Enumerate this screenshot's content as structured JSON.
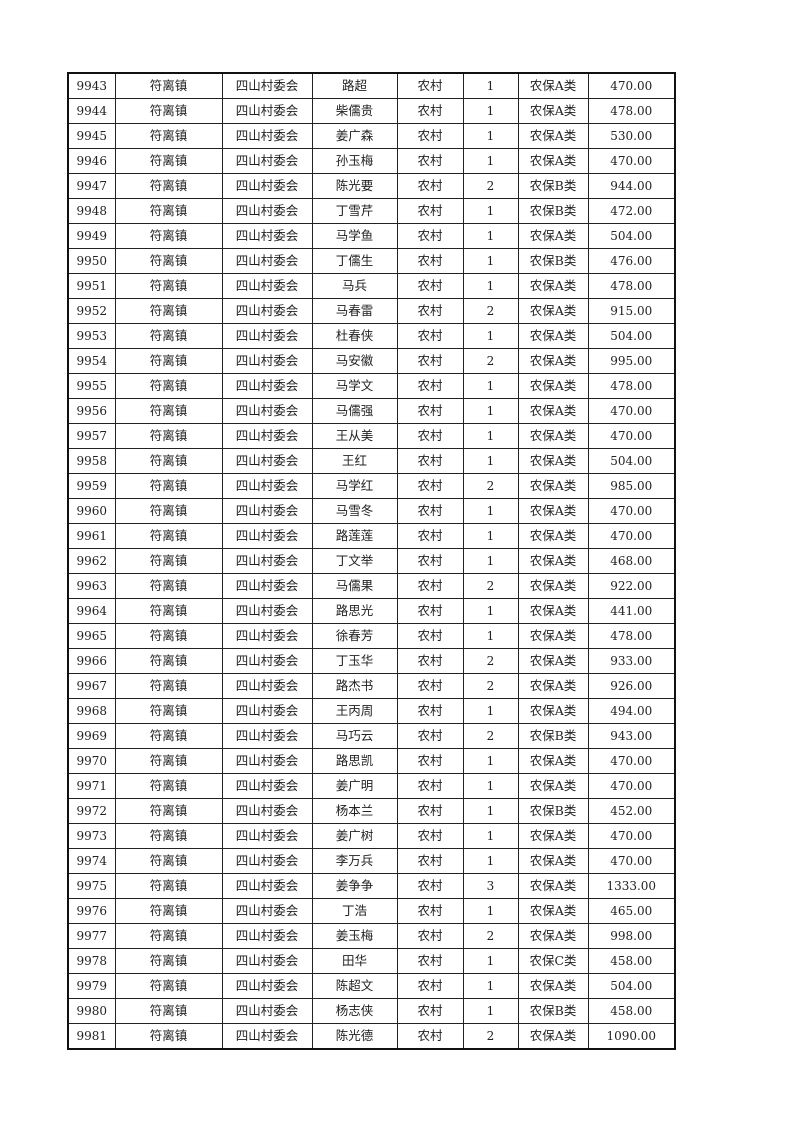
{
  "table": {
    "rows": [
      [
        "9943",
        "符离镇",
        "四山村委会",
        "路超",
        "农村",
        "1",
        "农保A类",
        "470.00"
      ],
      [
        "9944",
        "符离镇",
        "四山村委会",
        "柴儒贵",
        "农村",
        "1",
        "农保A类",
        "478.00"
      ],
      [
        "9945",
        "符离镇",
        "四山村委会",
        "姜广森",
        "农村",
        "1",
        "农保A类",
        "530.00"
      ],
      [
        "9946",
        "符离镇",
        "四山村委会",
        "孙玉梅",
        "农村",
        "1",
        "农保A类",
        "470.00"
      ],
      [
        "9947",
        "符离镇",
        "四山村委会",
        "陈光要",
        "农村",
        "2",
        "农保B类",
        "944.00"
      ],
      [
        "9948",
        "符离镇",
        "四山村委会",
        "丁雪芹",
        "农村",
        "1",
        "农保B类",
        "472.00"
      ],
      [
        "9949",
        "符离镇",
        "四山村委会",
        "马学鱼",
        "农村",
        "1",
        "农保A类",
        "504.00"
      ],
      [
        "9950",
        "符离镇",
        "四山村委会",
        "丁儒生",
        "农村",
        "1",
        "农保B类",
        "476.00"
      ],
      [
        "9951",
        "符离镇",
        "四山村委会",
        "马兵",
        "农村",
        "1",
        "农保A类",
        "478.00"
      ],
      [
        "9952",
        "符离镇",
        "四山村委会",
        "马春雷",
        "农村",
        "2",
        "农保A类",
        "915.00"
      ],
      [
        "9953",
        "符离镇",
        "四山村委会",
        "杜春侠",
        "农村",
        "1",
        "农保A类",
        "504.00"
      ],
      [
        "9954",
        "符离镇",
        "四山村委会",
        "马安徽",
        "农村",
        "2",
        "农保A类",
        "995.00"
      ],
      [
        "9955",
        "符离镇",
        "四山村委会",
        "马学文",
        "农村",
        "1",
        "农保A类",
        "478.00"
      ],
      [
        "9956",
        "符离镇",
        "四山村委会",
        "马儒强",
        "农村",
        "1",
        "农保A类",
        "470.00"
      ],
      [
        "9957",
        "符离镇",
        "四山村委会",
        "王从美",
        "农村",
        "1",
        "农保A类",
        "470.00"
      ],
      [
        "9958",
        "符离镇",
        "四山村委会",
        "王红",
        "农村",
        "1",
        "农保A类",
        "504.00"
      ],
      [
        "9959",
        "符离镇",
        "四山村委会",
        "马学红",
        "农村",
        "2",
        "农保A类",
        "985.00"
      ],
      [
        "9960",
        "符离镇",
        "四山村委会",
        "马雪冬",
        "农村",
        "1",
        "农保A类",
        "470.00"
      ],
      [
        "9961",
        "符离镇",
        "四山村委会",
        "路莲莲",
        "农村",
        "1",
        "农保A类",
        "470.00"
      ],
      [
        "9962",
        "符离镇",
        "四山村委会",
        "丁文举",
        "农村",
        "1",
        "农保A类",
        "468.00"
      ],
      [
        "9963",
        "符离镇",
        "四山村委会",
        "马儒果",
        "农村",
        "2",
        "农保A类",
        "922.00"
      ],
      [
        "9964",
        "符离镇",
        "四山村委会",
        "路思光",
        "农村",
        "1",
        "农保A类",
        "441.00"
      ],
      [
        "9965",
        "符离镇",
        "四山村委会",
        "徐春芳",
        "农村",
        "1",
        "农保A类",
        "478.00"
      ],
      [
        "9966",
        "符离镇",
        "四山村委会",
        "丁玉华",
        "农村",
        "2",
        "农保A类",
        "933.00"
      ],
      [
        "9967",
        "符离镇",
        "四山村委会",
        "路杰书",
        "农村",
        "2",
        "农保A类",
        "926.00"
      ],
      [
        "9968",
        "符离镇",
        "四山村委会",
        "王丙周",
        "农村",
        "1",
        "农保A类",
        "494.00"
      ],
      [
        "9969",
        "符离镇",
        "四山村委会",
        "马巧云",
        "农村",
        "2",
        "农保B类",
        "943.00"
      ],
      [
        "9970",
        "符离镇",
        "四山村委会",
        "路思凯",
        "农村",
        "1",
        "农保A类",
        "470.00"
      ],
      [
        "9971",
        "符离镇",
        "四山村委会",
        "姜广明",
        "农村",
        "1",
        "农保A类",
        "470.00"
      ],
      [
        "9972",
        "符离镇",
        "四山村委会",
        "杨本兰",
        "农村",
        "1",
        "农保B类",
        "452.00"
      ],
      [
        "9973",
        "符离镇",
        "四山村委会",
        "姜广树",
        "农村",
        "1",
        "农保A类",
        "470.00"
      ],
      [
        "9974",
        "符离镇",
        "四山村委会",
        "李万兵",
        "农村",
        "1",
        "农保A类",
        "470.00"
      ],
      [
        "9975",
        "符离镇",
        "四山村委会",
        "姜争争",
        "农村",
        "3",
        "农保A类",
        "1333.00"
      ],
      [
        "9976",
        "符离镇",
        "四山村委会",
        "丁浩",
        "农村",
        "1",
        "农保A类",
        "465.00"
      ],
      [
        "9977",
        "符离镇",
        "四山村委会",
        "姜玉梅",
        "农村",
        "2",
        "农保A类",
        "998.00"
      ],
      [
        "9978",
        "符离镇",
        "四山村委会",
        "田华",
        "农村",
        "1",
        "农保C类",
        "458.00"
      ],
      [
        "9979",
        "符离镇",
        "四山村委会",
        "陈超文",
        "农村",
        "1",
        "农保A类",
        "504.00"
      ],
      [
        "9980",
        "符离镇",
        "四山村委会",
        "杨志侠",
        "农村",
        "1",
        "农保B类",
        "458.00"
      ],
      [
        "9981",
        "符离镇",
        "四山村委会",
        "陈光德",
        "农村",
        "2",
        "农保A类",
        "1090.00"
      ]
    ]
  }
}
